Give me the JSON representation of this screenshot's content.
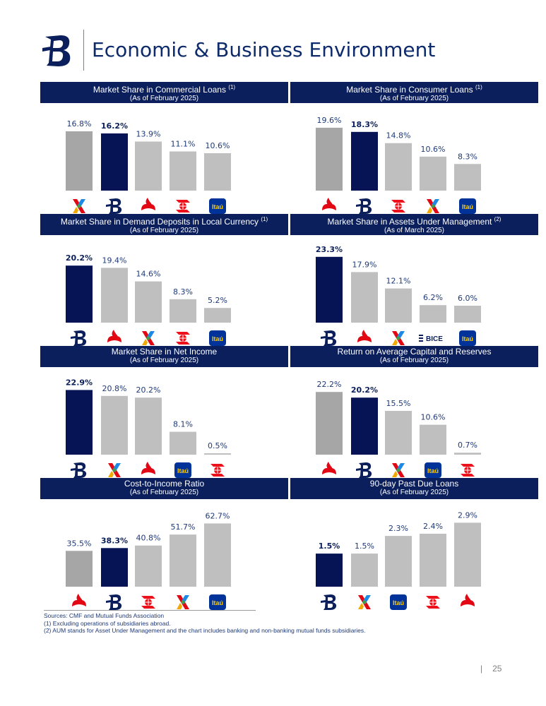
{
  "page": {
    "title": "Economic & Business Environment",
    "page_number": "25",
    "page_separator": "|"
  },
  "colors": {
    "highlight": "#061456",
    "dark_gray": "#a6a6a6",
    "light_gray": "#bfbfbf",
    "header_bg": "#0b1f5c",
    "label_blue": "#1f3a78",
    "santander_red": "#e30613",
    "scotiabank_red": "#ec111a",
    "itau_blue": "#003399",
    "itau_orange": "#ec7000"
  },
  "footer": {
    "sources": "Sources: CMF and Mutual Funds Association",
    "note1": "(1)   Excluding operations of subsidiaries abroad.",
    "note2": "(2)   AUM stands for Asset Under Management and the chart includes banking and non-banking mutual funds subsidiaries."
  },
  "chart_data": [
    {
      "type": "bar",
      "title": "Market Share in Commercial Loans",
      "title_note": "(1)",
      "subtitle": "(As of February 2025)",
      "categories": [
        "bci-logo",
        "bdechile-logo",
        "santander-logo",
        "scotiabank-logo",
        "itau-logo"
      ],
      "values": [
        16.8,
        16.2,
        13.9,
        11.1,
        10.6
      ],
      "labels": [
        "16.8%",
        "16.2%",
        "13.9%",
        "11.1%",
        "10.6%"
      ],
      "ylim": [
        0,
        20
      ],
      "colors": [
        "#a6a6a6",
        "#061456",
        "#bfbfbf",
        "#bfbfbf",
        "#bfbfbf"
      ],
      "highlight_index": 1
    },
    {
      "type": "bar",
      "title": "Market Share in Consumer Loans",
      "title_note": "(1)",
      "subtitle": "(As of February 2025)",
      "categories": [
        "santander-logo",
        "bdechile-logo",
        "scotiabank-logo",
        "bci-logo",
        "itau-logo"
      ],
      "values": [
        19.6,
        18.3,
        14.8,
        10.6,
        8.3
      ],
      "labels": [
        "19.6%",
        "18.3%",
        "14.8%",
        "10.6%",
        "8.3%"
      ],
      "ylim": [
        0,
        22
      ],
      "colors": [
        "#a6a6a6",
        "#061456",
        "#bfbfbf",
        "#bfbfbf",
        "#bfbfbf"
      ],
      "highlight_index": 1
    },
    {
      "type": "bar",
      "title": "Market Share in Demand Deposits in Local Currency",
      "title_note": "(1)",
      "subtitle": "(As of February 2025)",
      "categories": [
        "bdechile-logo",
        "santander-logo",
        "bci-logo",
        "scotiabank-logo",
        "itau-logo"
      ],
      "values": [
        20.2,
        19.4,
        14.6,
        8.3,
        5.2
      ],
      "labels": [
        "20.2%",
        "19.4%",
        "14.6%",
        "8.3%",
        "5.2%"
      ],
      "ylim": [
        0,
        25
      ],
      "colors": [
        "#061456",
        "#bfbfbf",
        "#bfbfbf",
        "#bfbfbf",
        "#bfbfbf"
      ],
      "highlight_index": 0
    },
    {
      "type": "bar",
      "title": "Market Share in Assets Under Management",
      "title_note": "(2)",
      "subtitle": "(As of March 2025)",
      "categories": [
        "bdechile-logo",
        "santander-logo",
        "bci-logo",
        "bice-logo",
        "itau-logo"
      ],
      "values": [
        23.3,
        17.9,
        12.1,
        6.2,
        6.0
      ],
      "labels": [
        "23.3%",
        "17.9%",
        "12.1%",
        "6.2%",
        "6.0%"
      ],
      "ylim": [
        0,
        25
      ],
      "colors": [
        "#061456",
        "#bfbfbf",
        "#bfbfbf",
        "#bfbfbf",
        "#bfbfbf"
      ],
      "highlight_index": 0,
      "bice_text": "BICE"
    },
    {
      "type": "bar",
      "title": "Market Share in Net Income",
      "title_note": "",
      "subtitle": "(As of February 2025)",
      "categories": [
        "bdechile-logo",
        "bci-logo",
        "santander-logo",
        "itau-logo",
        "scotiabank-logo"
      ],
      "values": [
        22.9,
        20.8,
        20.2,
        8.1,
        0.5
      ],
      "labels": [
        "22.9%",
        "20.8%",
        "20.2%",
        "8.1%",
        "0.5%"
      ],
      "ylim": [
        0,
        25
      ],
      "colors": [
        "#061456",
        "#bfbfbf",
        "#bfbfbf",
        "#bfbfbf",
        "#bfbfbf"
      ],
      "highlight_index": 0
    },
    {
      "type": "bar",
      "title": "Return on Average Capital and Reserves",
      "title_note": "",
      "subtitle": "(As of February 2025)",
      "categories": [
        "santander-logo",
        "bdechile-logo",
        "bci-logo",
        "itau-logo",
        "scotiabank-logo"
      ],
      "values": [
        22.2,
        20.2,
        15.5,
        10.6,
        0.7
      ],
      "labels": [
        "22.2%",
        "20.2%",
        "15.5%",
        "10.6%",
        "0.7%"
      ],
      "ylim": [
        0,
        25
      ],
      "colors": [
        "#a6a6a6",
        "#061456",
        "#bfbfbf",
        "#bfbfbf",
        "#bfbfbf"
      ],
      "highlight_index": 1
    },
    {
      "type": "bar",
      "title": "Cost-to-Income Ratio",
      "title_note": "",
      "subtitle": "(As of February 2025)",
      "categories": [
        "santander-logo",
        "bdechile-logo",
        "scotiabank-logo",
        "bci-logo",
        "itau-logo"
      ],
      "values": [
        35.5,
        38.3,
        40.8,
        51.7,
        62.7
      ],
      "labels": [
        "35.5%",
        "38.3%",
        "40.8%",
        "51.7%",
        "62.7%"
      ],
      "ylim": [
        0,
        70
      ],
      "colors": [
        "#a6a6a6",
        "#061456",
        "#bfbfbf",
        "#bfbfbf",
        "#bfbfbf"
      ],
      "highlight_index": 1
    },
    {
      "type": "bar",
      "title": "90-day Past Due Loans",
      "title_note": "",
      "subtitle": "(As of February 2025)",
      "categories": [
        "bdechile-logo",
        "bci-logo",
        "itau-logo",
        "scotiabank-logo",
        "santander-logo"
      ],
      "values": [
        1.5,
        1.5,
        2.3,
        2.4,
        2.9
      ],
      "labels": [
        "1.5%",
        "1.5%",
        "2.3%",
        "2.4%",
        "2.9%"
      ],
      "ylim": [
        0,
        3.2
      ],
      "colors": [
        "#061456",
        "#bfbfbf",
        "#bfbfbf",
        "#bfbfbf",
        "#bfbfbf"
      ],
      "highlight_index": 0
    }
  ]
}
